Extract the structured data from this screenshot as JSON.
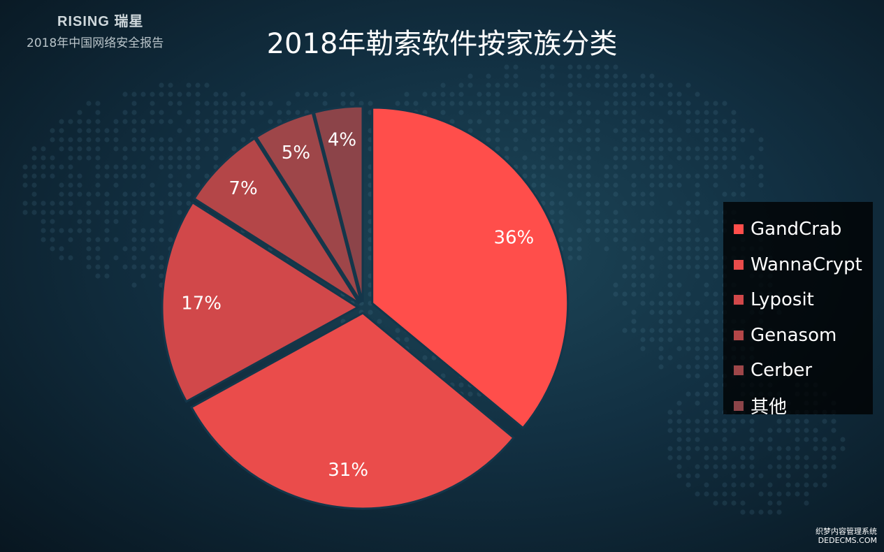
{
  "brand": {
    "logo": "RISING 瑞星",
    "subtitle": "2018年中国网络安全报告"
  },
  "watermark": {
    "line1": "织梦内容管理系统",
    "line2": "DEDECMS.COM"
  },
  "chart_data": {
    "type": "pie",
    "title": "2018年勒索软件按家族分类",
    "legend_position": "right",
    "slices": [
      {
        "label": "GandCrab",
        "value": 36,
        "display": "36%",
        "color": "#ff4e4b"
      },
      {
        "label": "WannaCrypt",
        "value": 31,
        "display": "31%",
        "color": "#ea4c4b"
      },
      {
        "label": "Lyposit",
        "value": 17,
        "display": "17%",
        "color": "#d1484a"
      },
      {
        "label": "Genasom",
        "value": 7,
        "display": "7%",
        "color": "#b44648"
      },
      {
        "label": "Cerber",
        "value": 5,
        "display": "5%",
        "color": "#9e4649"
      },
      {
        "label": "其他",
        "value": 4,
        "display": "4%",
        "color": "#8c4449"
      }
    ]
  }
}
